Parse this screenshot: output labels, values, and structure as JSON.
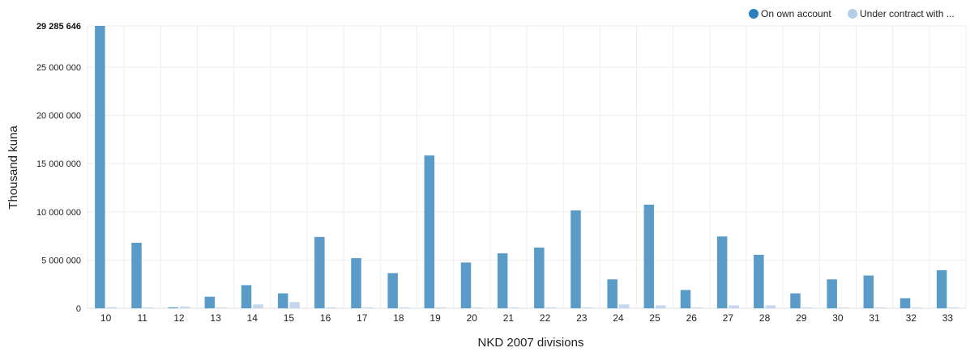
{
  "chart_data": {
    "type": "bar",
    "xlabel": "NKD 2007 divisions",
    "ylabel": "Thousand kuna",
    "ylim": [
      0,
      29285646
    ],
    "yticks": [
      0,
      5000000,
      10000000,
      15000000,
      20000000,
      25000000
    ],
    "ytick_labels": [
      "0",
      "5 000 000",
      "10 000 000",
      "15 000 000",
      "20 000 000",
      "25 000 000"
    ],
    "ymax_label": "29 285 646",
    "grid": true,
    "legend_position": "top-right",
    "categories": [
      "10",
      "11",
      "12",
      "13",
      "14",
      "15",
      "16",
      "17",
      "18",
      "19",
      "20",
      "21",
      "22",
      "23",
      "24",
      "25",
      "26",
      "27",
      "28",
      "29",
      "30",
      "31",
      "32",
      "33"
    ],
    "series": [
      {
        "name": "On own account",
        "color": "#5b9bc8",
        "legend_color": "#2a7fc0",
        "values": [
          29285646,
          6800000,
          100000,
          1200000,
          2400000,
          1550000,
          7400000,
          5200000,
          3650000,
          15850000,
          4750000,
          5700000,
          6300000,
          10150000,
          3000000,
          10750000,
          1900000,
          7450000,
          5550000,
          1550000,
          3000000,
          3400000,
          1050000,
          3950000
        ]
      },
      {
        "name": "Under contract with ...",
        "color": "#c4d7ee",
        "legend_color": "#b3cde8",
        "values": [
          120000,
          80000,
          180000,
          80000,
          400000,
          650000,
          100000,
          90000,
          90000,
          90000,
          80000,
          80000,
          100000,
          90000,
          400000,
          300000,
          80000,
          300000,
          300000,
          80000,
          80000,
          80000,
          70000,
          80000
        ]
      }
    ]
  }
}
